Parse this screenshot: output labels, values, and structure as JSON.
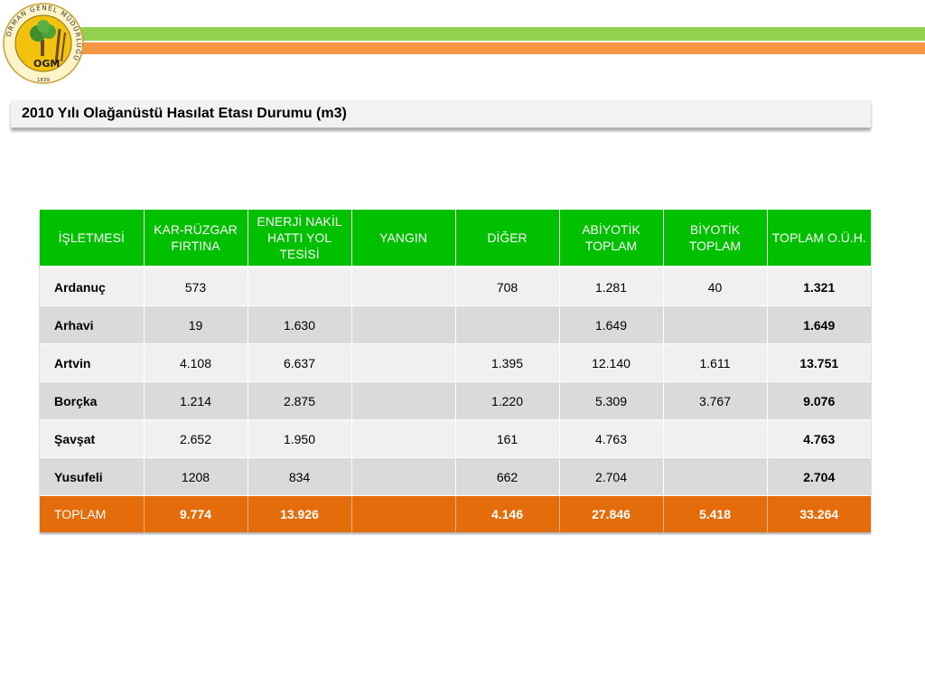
{
  "header": {
    "logo": {
      "icon": "ogm-seal-icon",
      "ring_text": "ORMAN GENEL MÜDÜRLÜĞÜ",
      "initials": "OGM",
      "year": "1839"
    }
  },
  "title": "2010 Yılı Olağanüstü Hasılat Etası Durumu (m3)",
  "table": {
    "headers": [
      "İŞLETMESİ",
      "KAR-RÜZGAR FIRTINA",
      "ENERJİ NAKİL HATTI  YOL TESİSİ",
      "YANGIN",
      "DİĞER",
      "ABİYOTİK TOPLAM",
      "BİYOTİK TOPLAM",
      "TOPLAM O.Ü.H."
    ],
    "rows": [
      [
        "Ardanuç",
        "573",
        "",
        "",
        "708",
        "1.281",
        "40",
        "1.321"
      ],
      [
        "Arhavi",
        "19",
        "1.630",
        "",
        "",
        "1.649",
        "",
        "1.649"
      ],
      [
        "Artvin",
        "4.108",
        "6.637",
        "",
        "1.395",
        "12.140",
        "1.611",
        "13.751"
      ],
      [
        "Borçka",
        "1.214",
        "2.875",
        "",
        "1.220",
        "5.309",
        "3.767",
        "9.076"
      ],
      [
        "Şavşat",
        "2.652",
        "1.950",
        "",
        "161",
        "4.763",
        "",
        "4.763"
      ],
      [
        "Yusufeli",
        "1208",
        "834",
        "",
        "662",
        "2.704",
        "",
        "2.704"
      ]
    ],
    "footer": [
      "TOPLAM",
      "9.774",
      "13.926",
      "",
      "4.146",
      "27.846",
      "5.418",
      "33.264"
    ]
  },
  "colors": {
    "header_green": "#00c000",
    "total_orange": "#e46c0a",
    "stripe_green": "#92d050",
    "stripe_orange": "#f79646"
  }
}
